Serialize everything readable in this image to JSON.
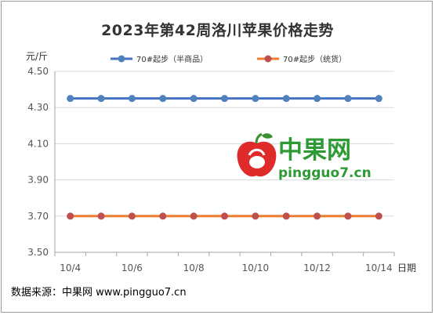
{
  "chart_data": {
    "type": "line",
    "title": "2023年第42周洛川苹果价格走势",
    "ylabel": "元/斤",
    "xlabel": "日期",
    "ylim": [
      3.5,
      4.5
    ],
    "y_ticks": [
      "3.50",
      "3.70",
      "3.90",
      "4.10",
      "4.30",
      "4.50"
    ],
    "x": [
      "10/4",
      "10/5",
      "10/6",
      "10/7",
      "10/8",
      "10/9",
      "10/10",
      "10/11",
      "10/12",
      "10/13",
      "10/14"
    ],
    "x_tick_labels": [
      "10/4",
      "10/6",
      "10/8",
      "10/10",
      "10/12",
      "10/14"
    ],
    "series": [
      {
        "name": "70#起步（半商品）",
        "color": "#4472c4",
        "marker_color": "#4f81bd",
        "values": [
          4.35,
          4.35,
          4.35,
          4.35,
          4.35,
          4.35,
          4.35,
          4.35,
          4.35,
          4.35,
          4.35
        ]
      },
      {
        "name": "70#起步（统货）",
        "color": "#ed7d31",
        "marker_color": "#c0504d",
        "values": [
          3.7,
          3.7,
          3.7,
          3.7,
          3.7,
          3.7,
          3.7,
          3.7,
          3.7,
          3.7,
          3.7
        ]
      }
    ],
    "grid": true,
    "legend": "top"
  },
  "watermark": {
    "brand": "中果网",
    "url": "pingguo7.cn"
  },
  "source_note": "数据来源：中果网 www.pingguo7.cn"
}
